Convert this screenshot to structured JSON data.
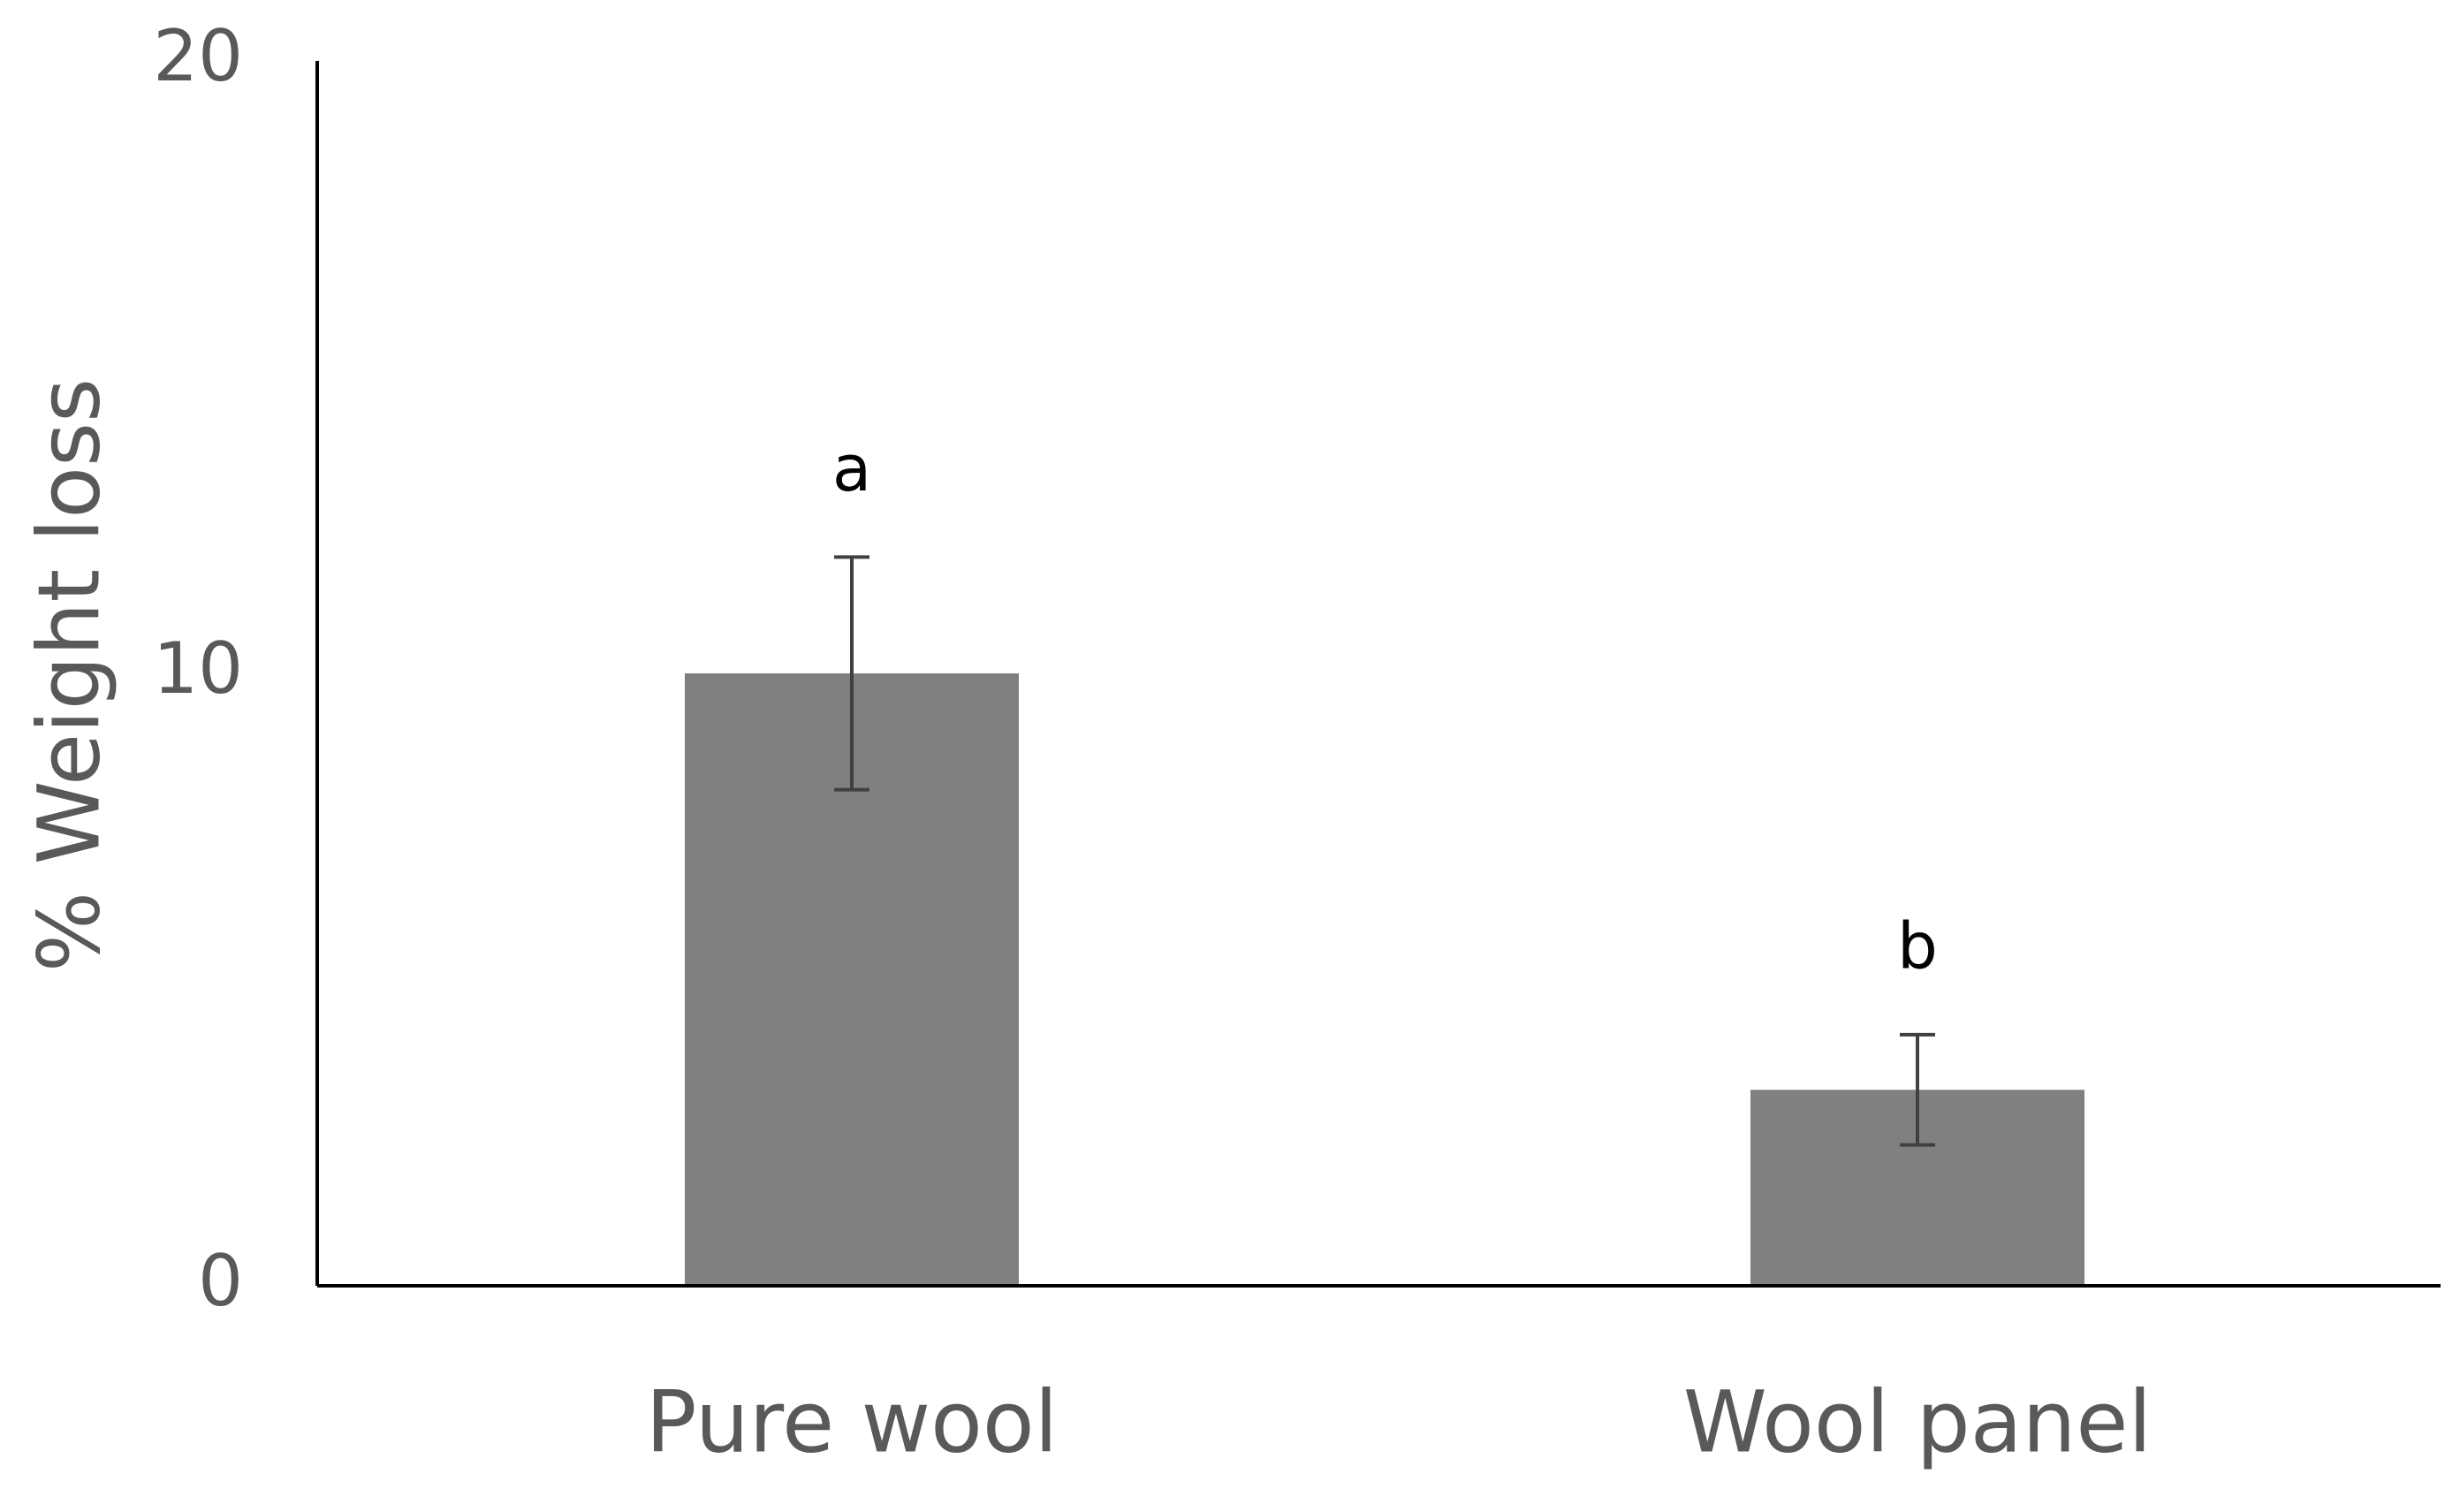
{
  "chart_data": {
    "type": "bar",
    "ylabel": "%  Weight loss",
    "categories": [
      "Pure wool",
      "Wool panel"
    ],
    "values": [
      10.0,
      3.2
    ],
    "errors": [
      1.9,
      0.9
    ],
    "annotations": [
      "a",
      "b"
    ],
    "color": "#808080",
    "error_color": "#404040",
    "ylim": [
      0,
      20
    ],
    "yticks": [
      0,
      10,
      20
    ],
    "grid": false
  }
}
